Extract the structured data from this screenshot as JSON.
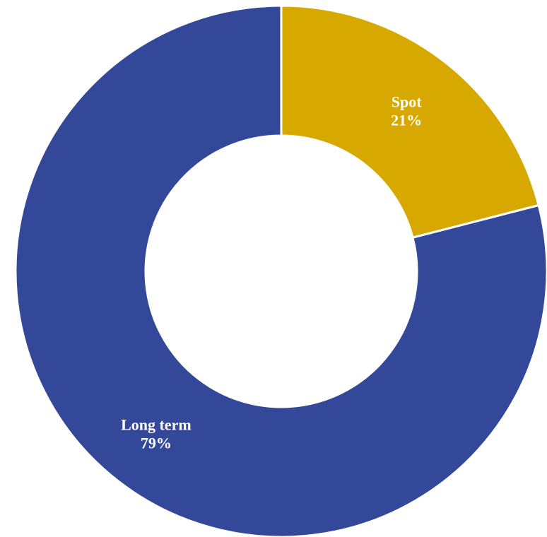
{
  "chart_data": {
    "type": "pie",
    "variant": "donut",
    "slices": [
      {
        "label": "Spot",
        "value": 21,
        "value_label": "21%",
        "color": "#D6A800"
      },
      {
        "label": "Long term",
        "value": 79,
        "value_label": "79%",
        "color": "#34489A"
      }
    ],
    "start_angle_deg": 0,
    "direction": "clockwise",
    "separator_color": "#ffffff",
    "legend": "none"
  }
}
